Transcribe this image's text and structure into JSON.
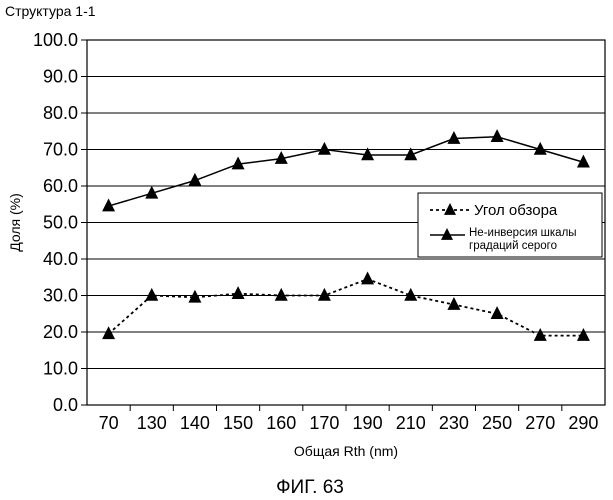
{
  "header": "Структура 1-1",
  "figure_caption": "ФИГ. 63",
  "chart_data": {
    "type": "line",
    "xlabel": "Общая Rth (nm)",
    "ylabel": "Доля (%)",
    "ylim": [
      0,
      100
    ],
    "y_ticks": [
      "0.0",
      "10.0",
      "20.0",
      "30.0",
      "40.0",
      "50.0",
      "60.0",
      "70.0",
      "80.0",
      "90.0",
      "100.0"
    ],
    "categories": [
      "70",
      "130",
      "140",
      "150",
      "160",
      "170",
      "190",
      "210",
      "230",
      "250",
      "270",
      "290"
    ],
    "grid": true,
    "legend_position": "right",
    "series": [
      {
        "name": "Угол обзора",
        "style": "dotted",
        "marker": "triangle",
        "color": "#000000",
        "values": [
          19.5,
          30.0,
          29.5,
          30.5,
          30.0,
          30.0,
          34.5,
          30.0,
          27.5,
          25.0,
          19.0,
          19.0
        ]
      },
      {
        "name_lines": [
          "Не-инверсия  шкалы",
          "градаций серого"
        ],
        "style": "solid",
        "marker": "triangle",
        "color": "#000000",
        "values": [
          54.5,
          58.0,
          61.5,
          66.0,
          67.5,
          70.0,
          68.5,
          68.5,
          73.0,
          73.5,
          70.0,
          66.5
        ]
      }
    ]
  }
}
